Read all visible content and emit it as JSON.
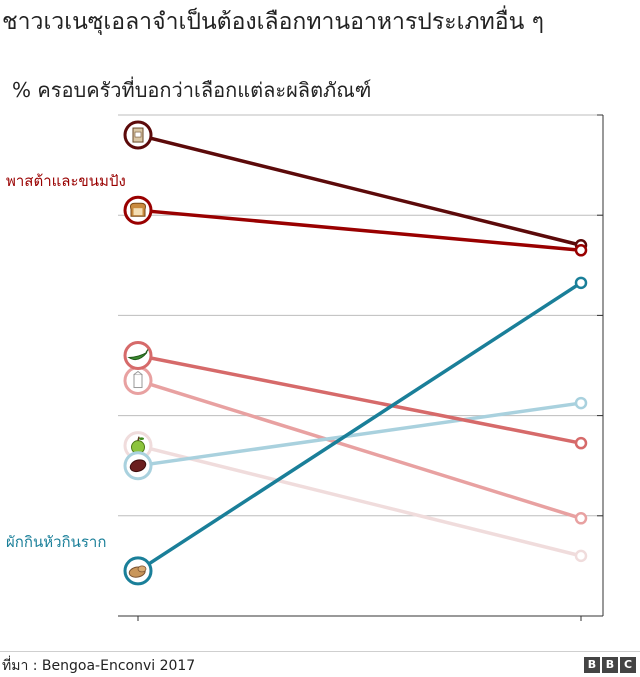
{
  "title": "ชาวเวเนซุเอลาจำเป็นต้องเลือกทานอาหารประเภทอื่น ๆ",
  "subtitle": "% ครอบครัวที่บอกว่าเลือกแต่ละผลิตภัณฑ์",
  "source": "ที่มา : Bengoa-Enconvi 2017",
  "logo_letters": [
    "B",
    "B",
    "C"
  ],
  "chart_data": {
    "type": "line",
    "grid": true,
    "ylim": [
      0,
      100
    ],
    "yticks": [
      0,
      20,
      40,
      60,
      80,
      100
    ],
    "x": [
      "start",
      "end"
    ],
    "series": [
      {
        "id": "flour",
        "icon": "flour-bag-icon",
        "color": "#5c0a0a",
        "values": [
          96,
          74
        ]
      },
      {
        "id": "pasta_bread",
        "name": "พาสต้าและขนมปัง",
        "icon": "bread-icon",
        "color": "#990000",
        "values": [
          81,
          73
        ]
      },
      {
        "id": "vegetables",
        "icon": "vegetable-icon",
        "color": "#d66a6a",
        "values": [
          52,
          34.5
        ]
      },
      {
        "id": "milk",
        "icon": "milk-icon",
        "color": "#e8a1a1",
        "values": [
          47,
          19.5
        ]
      },
      {
        "id": "fruit",
        "icon": "apple-icon",
        "color": "#f0dcdc",
        "values": [
          34,
          12
        ]
      },
      {
        "id": "beans",
        "icon": "beans-icon",
        "color": "#a9d1de",
        "values": [
          30,
          42.5
        ]
      },
      {
        "id": "roots",
        "name": "ผักกินหัวกินราก",
        "icon": "potato-icon",
        "color": "#1a7f99",
        "values": [
          9,
          66.5
        ]
      }
    ]
  }
}
